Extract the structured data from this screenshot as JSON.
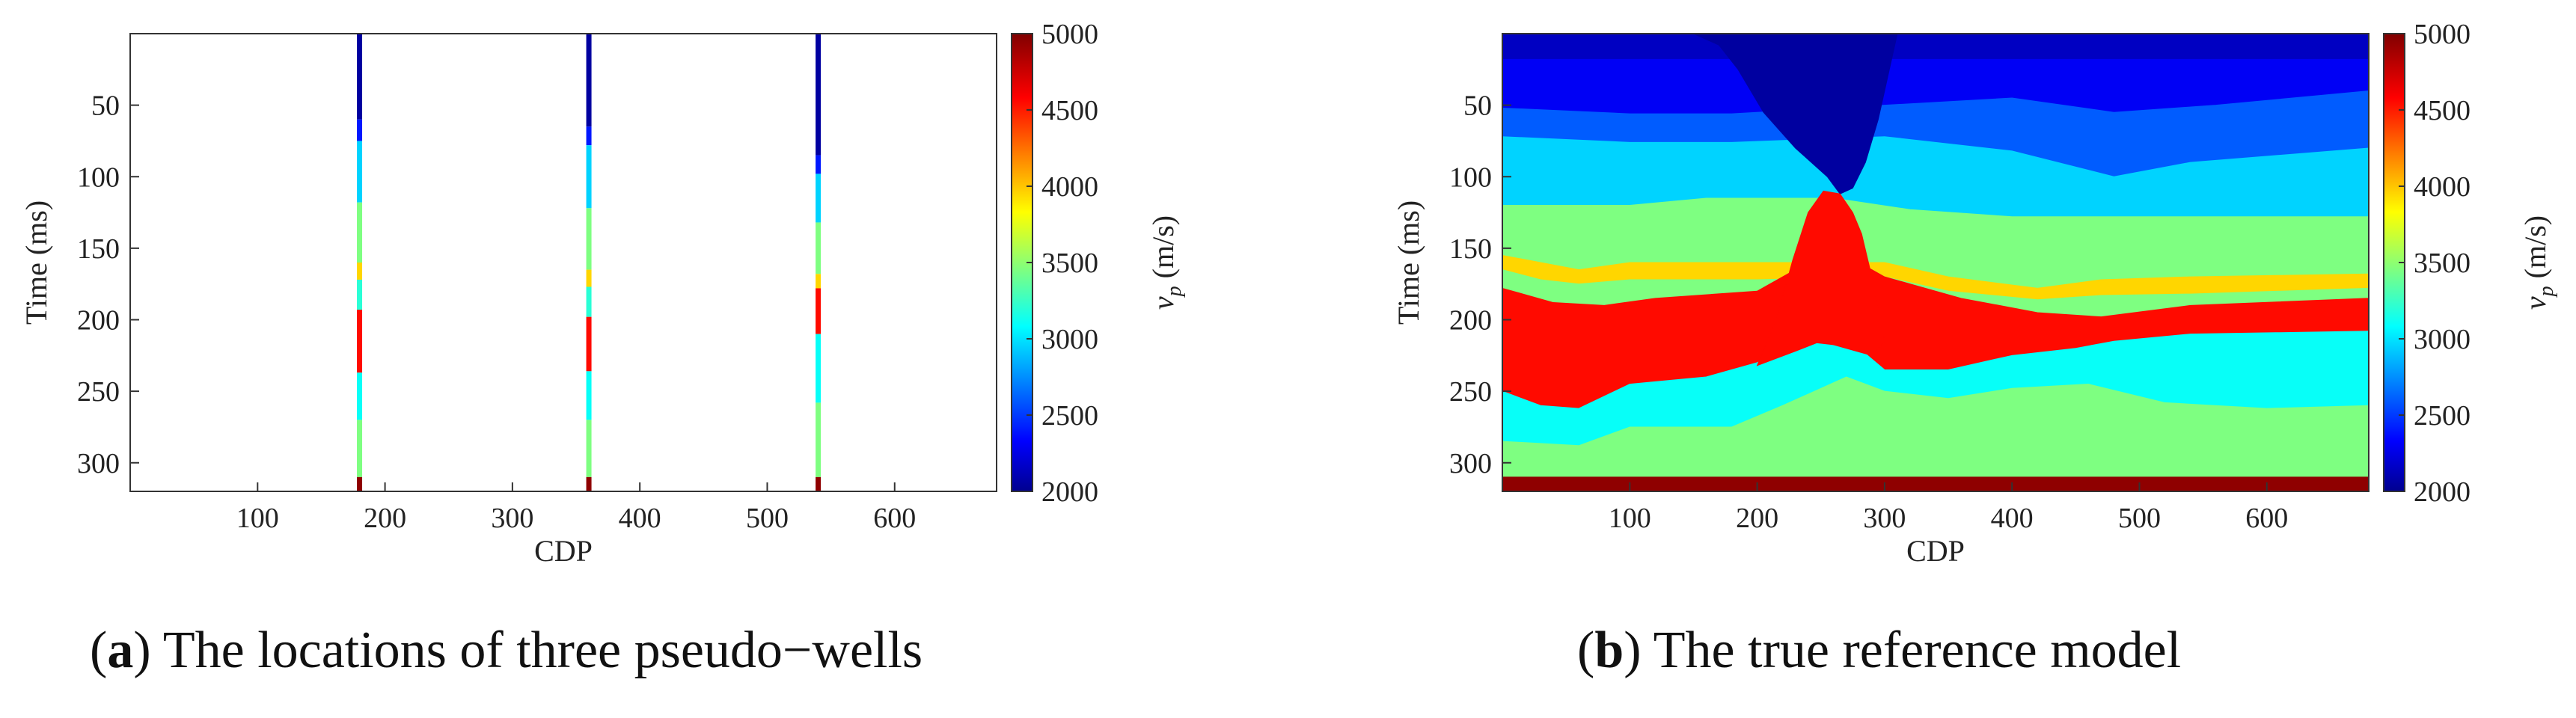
{
  "chart_data": [
    {
      "type": "heatmap",
      "panel_id": "a",
      "xlabel": "CDP",
      "ylabel": "Time (ms)",
      "colorbar_label_main": "v",
      "colorbar_label_sub": "p",
      "colorbar_label_unit": "(m/s)",
      "xlim": [
        0,
        680
      ],
      "ylim": [
        0,
        320
      ],
      "xticks": [
        100,
        200,
        300,
        400,
        500,
        600
      ],
      "yticks": [
        50,
        100,
        150,
        200,
        250,
        300
      ],
      "clim": [
        2000,
        5000
      ],
      "cticks": [
        2000,
        2500,
        3000,
        3500,
        4000,
        4500,
        5000
      ],
      "wells": [
        {
          "cdp": 180,
          "segments": [
            {
              "t0": 0,
              "t1": 60,
              "v": 2050
            },
            {
              "t0": 60,
              "t1": 75,
              "v": 2400
            },
            {
              "t0": 75,
              "t1": 118,
              "v": 2950
            },
            {
              "t0": 118,
              "t1": 160,
              "v": 3450
            },
            {
              "t0": 160,
              "t1": 172,
              "v": 3950
            },
            {
              "t0": 172,
              "t1": 193,
              "v": 3200
            },
            {
              "t0": 193,
              "t1": 237,
              "v": 4550
            },
            {
              "t0": 237,
              "t1": 270,
              "v": 3100
            },
            {
              "t0": 270,
              "t1": 310,
              "v": 3450
            },
            {
              "t0": 310,
              "t1": 320,
              "v": 4950
            }
          ]
        },
        {
          "cdp": 360,
          "segments": [
            {
              "t0": 0,
              "t1": 65,
              "v": 2050
            },
            {
              "t0": 65,
              "t1": 78,
              "v": 2400
            },
            {
              "t0": 78,
              "t1": 122,
              "v": 2950
            },
            {
              "t0": 122,
              "t1": 165,
              "v": 3450
            },
            {
              "t0": 165,
              "t1": 177,
              "v": 3950
            },
            {
              "t0": 177,
              "t1": 198,
              "v": 3200
            },
            {
              "t0": 198,
              "t1": 236,
              "v": 4550
            },
            {
              "t0": 236,
              "t1": 270,
              "v": 3100
            },
            {
              "t0": 270,
              "t1": 310,
              "v": 3450
            },
            {
              "t0": 310,
              "t1": 320,
              "v": 4950
            }
          ]
        },
        {
          "cdp": 540,
          "segments": [
            {
              "t0": 0,
              "t1": 85,
              "v": 2050
            },
            {
              "t0": 85,
              "t1": 98,
              "v": 2400
            },
            {
              "t0": 98,
              "t1": 132,
              "v": 2950
            },
            {
              "t0": 132,
              "t1": 168,
              "v": 3450
            },
            {
              "t0": 168,
              "t1": 178,
              "v": 3950
            },
            {
              "t0": 178,
              "t1": 210,
              "v": 4550
            },
            {
              "t0": 210,
              "t1": 258,
              "v": 3100
            },
            {
              "t0": 258,
              "t1": 310,
              "v": 3450
            },
            {
              "t0": 310,
              "t1": 320,
              "v": 4950
            }
          ]
        }
      ]
    },
    {
      "type": "heatmap",
      "panel_id": "b",
      "xlabel": "CDP",
      "ylabel": "Time (ms)",
      "colorbar_label_main": "v",
      "colorbar_label_sub": "p",
      "colorbar_label_unit": "(m/s)",
      "xlim": [
        0,
        680
      ],
      "ylim": [
        0,
        320
      ],
      "xticks": [
        100,
        200,
        300,
        400,
        500,
        600
      ],
      "yticks": [
        50,
        100,
        150,
        200,
        250,
        300
      ],
      "clim": [
        2000,
        5000
      ],
      "cticks": [
        2000,
        2500,
        3000,
        3500,
        4000,
        4500,
        5000
      ],
      "layers_note": "Each layer is drawn top to bottom; top boundary is the previous layer's base. Control points are [CDP, time ms].",
      "layers": [
        {
          "v": 2150,
          "base": [
            [
              0,
              18
            ],
            [
              200,
              18
            ],
            [
              300,
              18
            ],
            [
              480,
              18
            ],
            [
              680,
              18
            ]
          ]
        },
        {
          "v": 2300,
          "base": [
            [
              0,
              52
            ],
            [
              100,
              56
            ],
            [
              180,
              56
            ],
            [
              300,
              50
            ],
            [
              400,
              45
            ],
            [
              480,
              55
            ],
            [
              560,
              50
            ],
            [
              680,
              40
            ]
          ]
        },
        {
          "v": 2600,
          "base": [
            [
              0,
              72
            ],
            [
              100,
              76
            ],
            [
              180,
              76
            ],
            [
              300,
              72
            ],
            [
              400,
              82
            ],
            [
              480,
              100
            ],
            [
              540,
              90
            ],
            [
              680,
              80
            ]
          ]
        },
        {
          "v": 2950,
          "base": [
            [
              0,
              120
            ],
            [
              100,
              120
            ],
            [
              160,
              115
            ],
            [
              260,
              115
            ],
            [
              320,
              123
            ],
            [
              400,
              128
            ],
            [
              480,
              128
            ],
            [
              680,
              128
            ]
          ]
        },
        {
          "v": 3450,
          "base": [
            [
              0,
              155
            ],
            [
              30,
              160
            ],
            [
              60,
              165
            ],
            [
              100,
              160
            ],
            [
              200,
              160
            ],
            [
              300,
              160
            ],
            [
              350,
              170
            ],
            [
              420,
              178
            ],
            [
              470,
              172
            ],
            [
              540,
              170
            ],
            [
              680,
              168
            ]
          ]
        },
        {
          "v": 3950,
          "base": [
            [
              0,
              165
            ],
            [
              30,
              172
            ],
            [
              60,
              175
            ],
            [
              100,
              172
            ],
            [
              200,
              172
            ],
            [
              300,
              170
            ],
            [
              350,
              180
            ],
            [
              420,
              186
            ],
            [
              470,
              183
            ],
            [
              540,
              182
            ],
            [
              680,
              178
            ]
          ]
        },
        {
          "v": 3450,
          "base": [
            [
              0,
              178
            ],
            [
              40,
              188
            ],
            [
              80,
              190
            ],
            [
              120,
              185
            ],
            [
              200,
              180
            ],
            [
              230,
              165
            ],
            [
              260,
              150
            ],
            [
              300,
              170
            ],
            [
              360,
              185
            ],
            [
              420,
              195
            ],
            [
              470,
              198
            ],
            [
              540,
              190
            ],
            [
              680,
              185
            ]
          ]
        },
        {
          "v": 4550,
          "base": [
            [
              0,
              250
            ],
            [
              30,
              260
            ],
            [
              60,
              262
            ],
            [
              100,
              245
            ],
            [
              160,
              240
            ],
            [
              200,
              230
            ],
            [
              230,
              215
            ],
            [
              280,
              220
            ],
            [
              300,
              235
            ],
            [
              350,
              235
            ],
            [
              400,
              225
            ],
            [
              450,
              220
            ],
            [
              480,
              215
            ],
            [
              540,
              210
            ],
            [
              680,
              208
            ]
          ]
        },
        {
          "v": 3100,
          "base": [
            [
              0,
              285
            ],
            [
              60,
              288
            ],
            [
              100,
              275
            ],
            [
              180,
              275
            ],
            [
              220,
              260
            ],
            [
              270,
              240
            ],
            [
              300,
              250
            ],
            [
              350,
              255
            ],
            [
              400,
              248
            ],
            [
              460,
              245
            ],
            [
              520,
              258
            ],
            [
              600,
              262
            ],
            [
              680,
              260
            ]
          ]
        },
        {
          "v": 3450,
          "base": [
            [
              0,
              310
            ],
            [
              680,
              310
            ]
          ]
        },
        {
          "v": 4950,
          "base": [
            [
              0,
              320
            ],
            [
              680,
              320
            ]
          ]
        }
      ],
      "salt_body": {
        "v": 2050,
        "outline": [
          [
            150,
            0
          ],
          [
            310,
            0
          ],
          [
            295,
            60
          ],
          [
            285,
            90
          ],
          [
            275,
            108
          ],
          [
            265,
            112
          ],
          [
            255,
            100
          ],
          [
            230,
            80
          ],
          [
            205,
            55
          ],
          [
            185,
            25
          ],
          [
            170,
            8
          ]
        ]
      },
      "red_dome": {
        "v": 4550,
        "outline": [
          [
            200,
            232
          ],
          [
            215,
            200
          ],
          [
            228,
            158
          ],
          [
            240,
            125
          ],
          [
            252,
            110
          ],
          [
            265,
            112
          ],
          [
            275,
            125
          ],
          [
            282,
            140
          ],
          [
            290,
            170
          ],
          [
            300,
            215
          ],
          [
            290,
            225
          ],
          [
            270,
            220
          ],
          [
            250,
            215
          ],
          [
            230,
            222
          ]
        ]
      }
    }
  ],
  "captions": {
    "a_label": "(a)",
    "a_label_letter": "a",
    "a_text": " The locations of three pseudo−wells",
    "b_label_letter": "b",
    "b_text": " The true reference model"
  },
  "colors": {
    "jet": [
      "#00008f",
      "#0000ff",
      "#00ffff",
      "#ffff00",
      "#ff0000",
      "#800000"
    ]
  }
}
